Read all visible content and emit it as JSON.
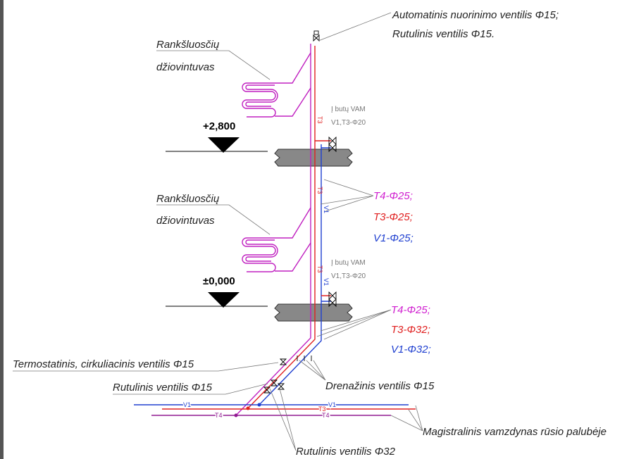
{
  "air_vent": {
    "line1": "Automatinis nuorinimo ventilis Φ15;",
    "line2": "Rutulinis ventilis Φ15."
  },
  "towel_dryer_upper": {
    "line1": "Rankšluosčių",
    "line2": "džiovintuvas"
  },
  "towel_dryer_lower": {
    "line1": "Rankšluosčių",
    "line2": "džiovintuvas"
  },
  "vam_upper": {
    "line1": "Į butų VAM",
    "line2": "V1,T3-Φ20"
  },
  "vam_lower": {
    "line1": "Į butų VAM",
    "line2": "V1,T3-Φ20"
  },
  "levels": [
    "+2,800",
    "±0,000"
  ],
  "riser_upper": [
    "T4-Φ25;",
    "T3-Φ25;",
    "V1-Φ25;"
  ],
  "riser_lower": [
    "T4-Φ25;",
    "T3-Φ32;",
    "V1-Φ32;"
  ],
  "thermostatic_valve": "Termostatinis, cirkuliacinis ventilis Φ15",
  "ball_valve_15": "Rutulinis ventilis Φ15",
  "drain_valve": "Drenažinis ventilis Φ15",
  "ball_valve_32": "Rutulinis ventilis Φ32",
  "main_pipes": "Magistralinis vamzdynas rūsio palubėje",
  "pipe_labels": [
    "T3",
    "T3",
    "V1",
    "T3",
    "V1",
    "V1",
    "V1",
    "T3",
    "T4",
    "T4"
  ]
}
